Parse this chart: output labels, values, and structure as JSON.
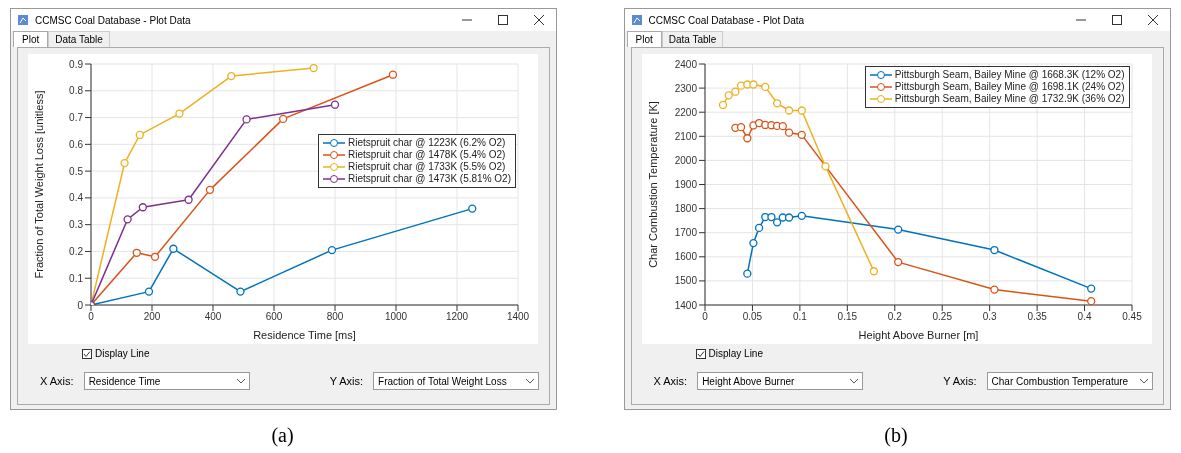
{
  "chart_data": [
    {
      "type": "line",
      "xlabel": "Residence Time [ms]",
      "ylabel": "Fraction of Total Weight Loss [unitless]",
      "xlim": [
        0,
        1400
      ],
      "xticks": [
        0,
        200,
        400,
        600,
        800,
        1000,
        1200,
        1400
      ],
      "ylim": [
        0,
        0.9
      ],
      "yticks": [
        0,
        0.1,
        0.2,
        0.3,
        0.4,
        0.5,
        0.6,
        0.7,
        0.8,
        0.9
      ],
      "grid": true,
      "legend": "right",
      "marker": "circle",
      "line_style": "solid",
      "annotations": [
        "CCMSC Coal Database - Plot Data",
        "Plot",
        "Data Table",
        "Display Line",
        "X Axis:",
        "Residence Time",
        "Y Axis:",
        "Fraction of Total Weight Loss",
        "(a)"
      ],
      "series": [
        {
          "name": "Rietspruit char @ 1223K (6.2% O2)",
          "color": "#0072bd",
          "x": [
            0,
            190,
            270,
            490,
            790,
            1250
          ],
          "values": [
            0,
            0.05,
            0.21,
            0.05,
            0.205,
            0.36
          ]
        },
        {
          "name": "Rietspruit char @ 1478K (5.4% O2)",
          "color": "#d95319",
          "x": [
            0,
            150,
            210,
            390,
            630,
            990
          ],
          "values": [
            0,
            0.195,
            0.18,
            0.43,
            0.695,
            0.86
          ]
        },
        {
          "name": "Rietspruit char @ 1733K (5.5% O2)",
          "color": "#edb120",
          "x": [
            0,
            110,
            160,
            290,
            460,
            730
          ],
          "values": [
            0,
            0.53,
            0.635,
            0.715,
            0.855,
            0.885
          ]
        },
        {
          "name": "Rietspruit char @ 1473K (5.81% O2)",
          "color": "#7e2f8e",
          "x": [
            0,
            120,
            170,
            320,
            510,
            800
          ],
          "values": [
            0,
            0.32,
            0.365,
            0.393,
            0.693,
            0.748
          ]
        }
      ]
    },
    {
      "type": "line",
      "xlabel": "Height Above Burner [m]",
      "ylabel": "Char Combustion Temperature [K]",
      "xlim": [
        0,
        0.45
      ],
      "xticks": [
        0,
        0.05,
        0.1,
        0.15,
        0.2,
        0.25,
        0.3,
        0.35,
        0.4,
        0.45
      ],
      "ylim": [
        1400,
        2400
      ],
      "yticks": [
        1400,
        1500,
        1600,
        1700,
        1800,
        1900,
        2000,
        2100,
        2200,
        2300,
        2400
      ],
      "grid": true,
      "legend": "top right",
      "marker": "circle",
      "line_style": "solid",
      "annotations": [
        "CCMSC Coal Database - Plot Data",
        "Plot",
        "Data Table",
        "Display Line",
        "X Axis:",
        "Height Above Burner",
        "Y Axis:",
        "Char Combustion Temperature",
        "(b)"
      ],
      "series": [
        {
          "name": "Pittsburgh Seam, Bailey Mine @ 1668.3K (12% O2)",
          "color": "#0072bd",
          "x": [
            0.0446,
            0.051,
            0.057,
            0.0635,
            0.07,
            0.076,
            0.082,
            0.0886,
            0.102,
            0.2036,
            0.305,
            0.407
          ],
          "values": [
            1530,
            1657,
            1720,
            1765,
            1765,
            1743,
            1763,
            1763,
            1770,
            1713,
            1628,
            1468
          ]
        },
        {
          "name": "Pittsburgh Seam, Bailey Mine @ 1698.1K (24% O2)",
          "color": "#d95319",
          "x": [
            0.032,
            0.038,
            0.0446,
            0.051,
            0.057,
            0.0635,
            0.07,
            0.076,
            0.082,
            0.0886,
            0.102,
            0.2036,
            0.305,
            0.407
          ],
          "values": [
            2135,
            2138,
            2092,
            2145,
            2155,
            2147,
            2146,
            2143,
            2142,
            2115,
            2106,
            1578,
            1464,
            1416
          ]
        },
        {
          "name": "Pittsburgh Seam, Bailey Mine @ 1732.9K (36% O2)",
          "color": "#edb120",
          "x": [
            0.019,
            0.025,
            0.032,
            0.038,
            0.0446,
            0.051,
            0.0635,
            0.076,
            0.0886,
            0.102,
            0.127,
            0.178
          ],
          "values": [
            2230,
            2270,
            2285,
            2310,
            2315,
            2315,
            2305,
            2237,
            2207,
            2207,
            1975,
            1540
          ]
        }
      ]
    }
  ]
}
